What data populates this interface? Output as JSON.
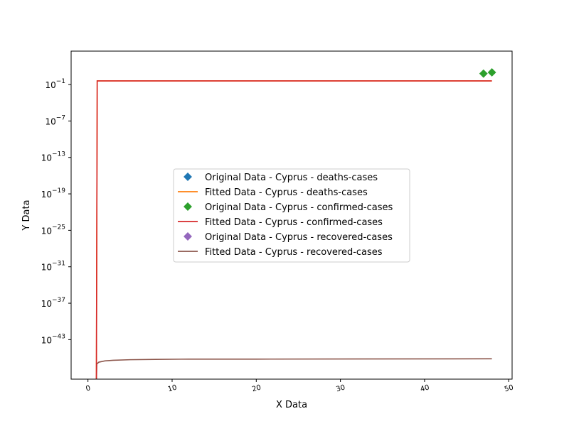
{
  "chart_data": {
    "type": "line",
    "title": "",
    "xlabel": "X Data",
    "ylabel": "Y Data",
    "xlim": [
      -2,
      50.4
    ],
    "ylim_log10": [
      -49.5,
      4.5
    ],
    "yscale": "log",
    "grid": false,
    "legend_placement": "center",
    "x_ticks": [
      {
        "value": 0,
        "label": "0"
      },
      {
        "value": 10,
        "label": "10"
      },
      {
        "value": 20,
        "label": "20"
      },
      {
        "value": 30,
        "label": "30"
      },
      {
        "value": 40,
        "label": "40"
      },
      {
        "value": 50,
        "label": "50"
      }
    ],
    "y_ticks": [
      {
        "exp": -43,
        "base": "10",
        "power": "−43"
      },
      {
        "exp": -37,
        "base": "10",
        "power": "−37"
      },
      {
        "exp": -31,
        "base": "10",
        "power": "−31"
      },
      {
        "exp": -25,
        "base": "10",
        "power": "−25"
      },
      {
        "exp": -19,
        "base": "10",
        "power": "−19"
      },
      {
        "exp": -13,
        "base": "10",
        "power": "−13"
      },
      {
        "exp": -7,
        "base": "10",
        "power": "−7"
      },
      {
        "exp": -1,
        "base": "10",
        "power": "−1"
      }
    ],
    "series": [
      {
        "name": "Original Data - Cyprus - deaths-cases",
        "kind": "marker",
        "color": "#1f77b4",
        "points": []
      },
      {
        "name": "Fitted Data - Cyprus - deaths-cases",
        "kind": "line",
        "color": "#ff7f0e",
        "points": [
          [
            1,
            -50
          ],
          [
            1.1,
            -0.4
          ],
          [
            48,
            -0.4
          ]
        ]
      },
      {
        "name": "Original Data - Cyprus - confirmed-cases",
        "kind": "marker",
        "color": "#2ca02c",
        "points": [
          [
            47,
            0.8
          ],
          [
            48,
            1.0
          ]
        ]
      },
      {
        "name": "Fitted Data - Cyprus - confirmed-cases",
        "kind": "line",
        "color": "#d62728",
        "points": [
          [
            1,
            -50
          ],
          [
            1.1,
            -0.4
          ],
          [
            48,
            -0.4
          ]
        ]
      },
      {
        "name": "Original Data - Cyprus - recovered-cases",
        "kind": "marker",
        "color": "#9467bd",
        "points": []
      },
      {
        "name": "Fitted Data - Cyprus - recovered-cases",
        "kind": "line",
        "color": "#8c564b",
        "points": [
          [
            1,
            -50
          ],
          [
            1.05,
            -47
          ],
          [
            1.3,
            -46.7
          ],
          [
            2,
            -46.5
          ],
          [
            3,
            -46.4
          ],
          [
            5,
            -46.3
          ],
          [
            8,
            -46.25
          ],
          [
            12,
            -46.2
          ],
          [
            20,
            -46.2
          ],
          [
            48,
            -46.15
          ]
        ]
      }
    ]
  }
}
